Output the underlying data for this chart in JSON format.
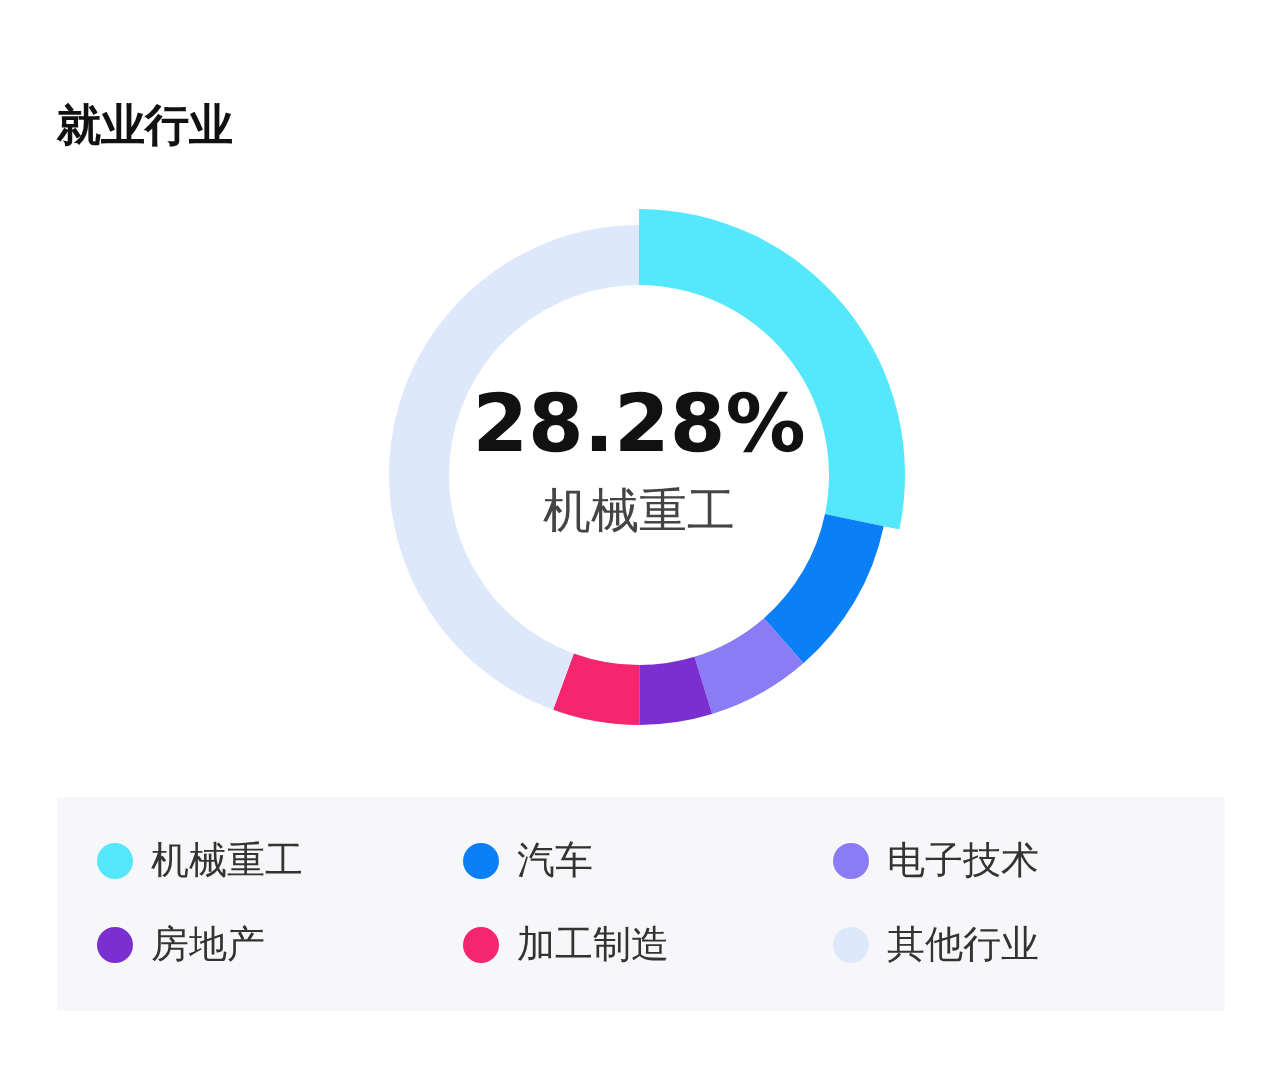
{
  "chart_data": {
    "type": "donut",
    "title": "就业行业",
    "categories": [
      "机械重工",
      "汽车",
      "电子技术",
      "房地产",
      "加工制造",
      "其他行业"
    ],
    "values": [
      28.28,
      10.3,
      6.7,
      4.7,
      5.6,
      44.42
    ],
    "colors": [
      "#55e8fc",
      "#0b7ff5",
      "#8a7cf5",
      "#7b2fd0",
      "#f5256e",
      "#dde9fb"
    ],
    "value_labels": [
      "28.28%",
      null,
      null,
      null,
      null,
      null
    ],
    "legend": "bottom"
  }
}
